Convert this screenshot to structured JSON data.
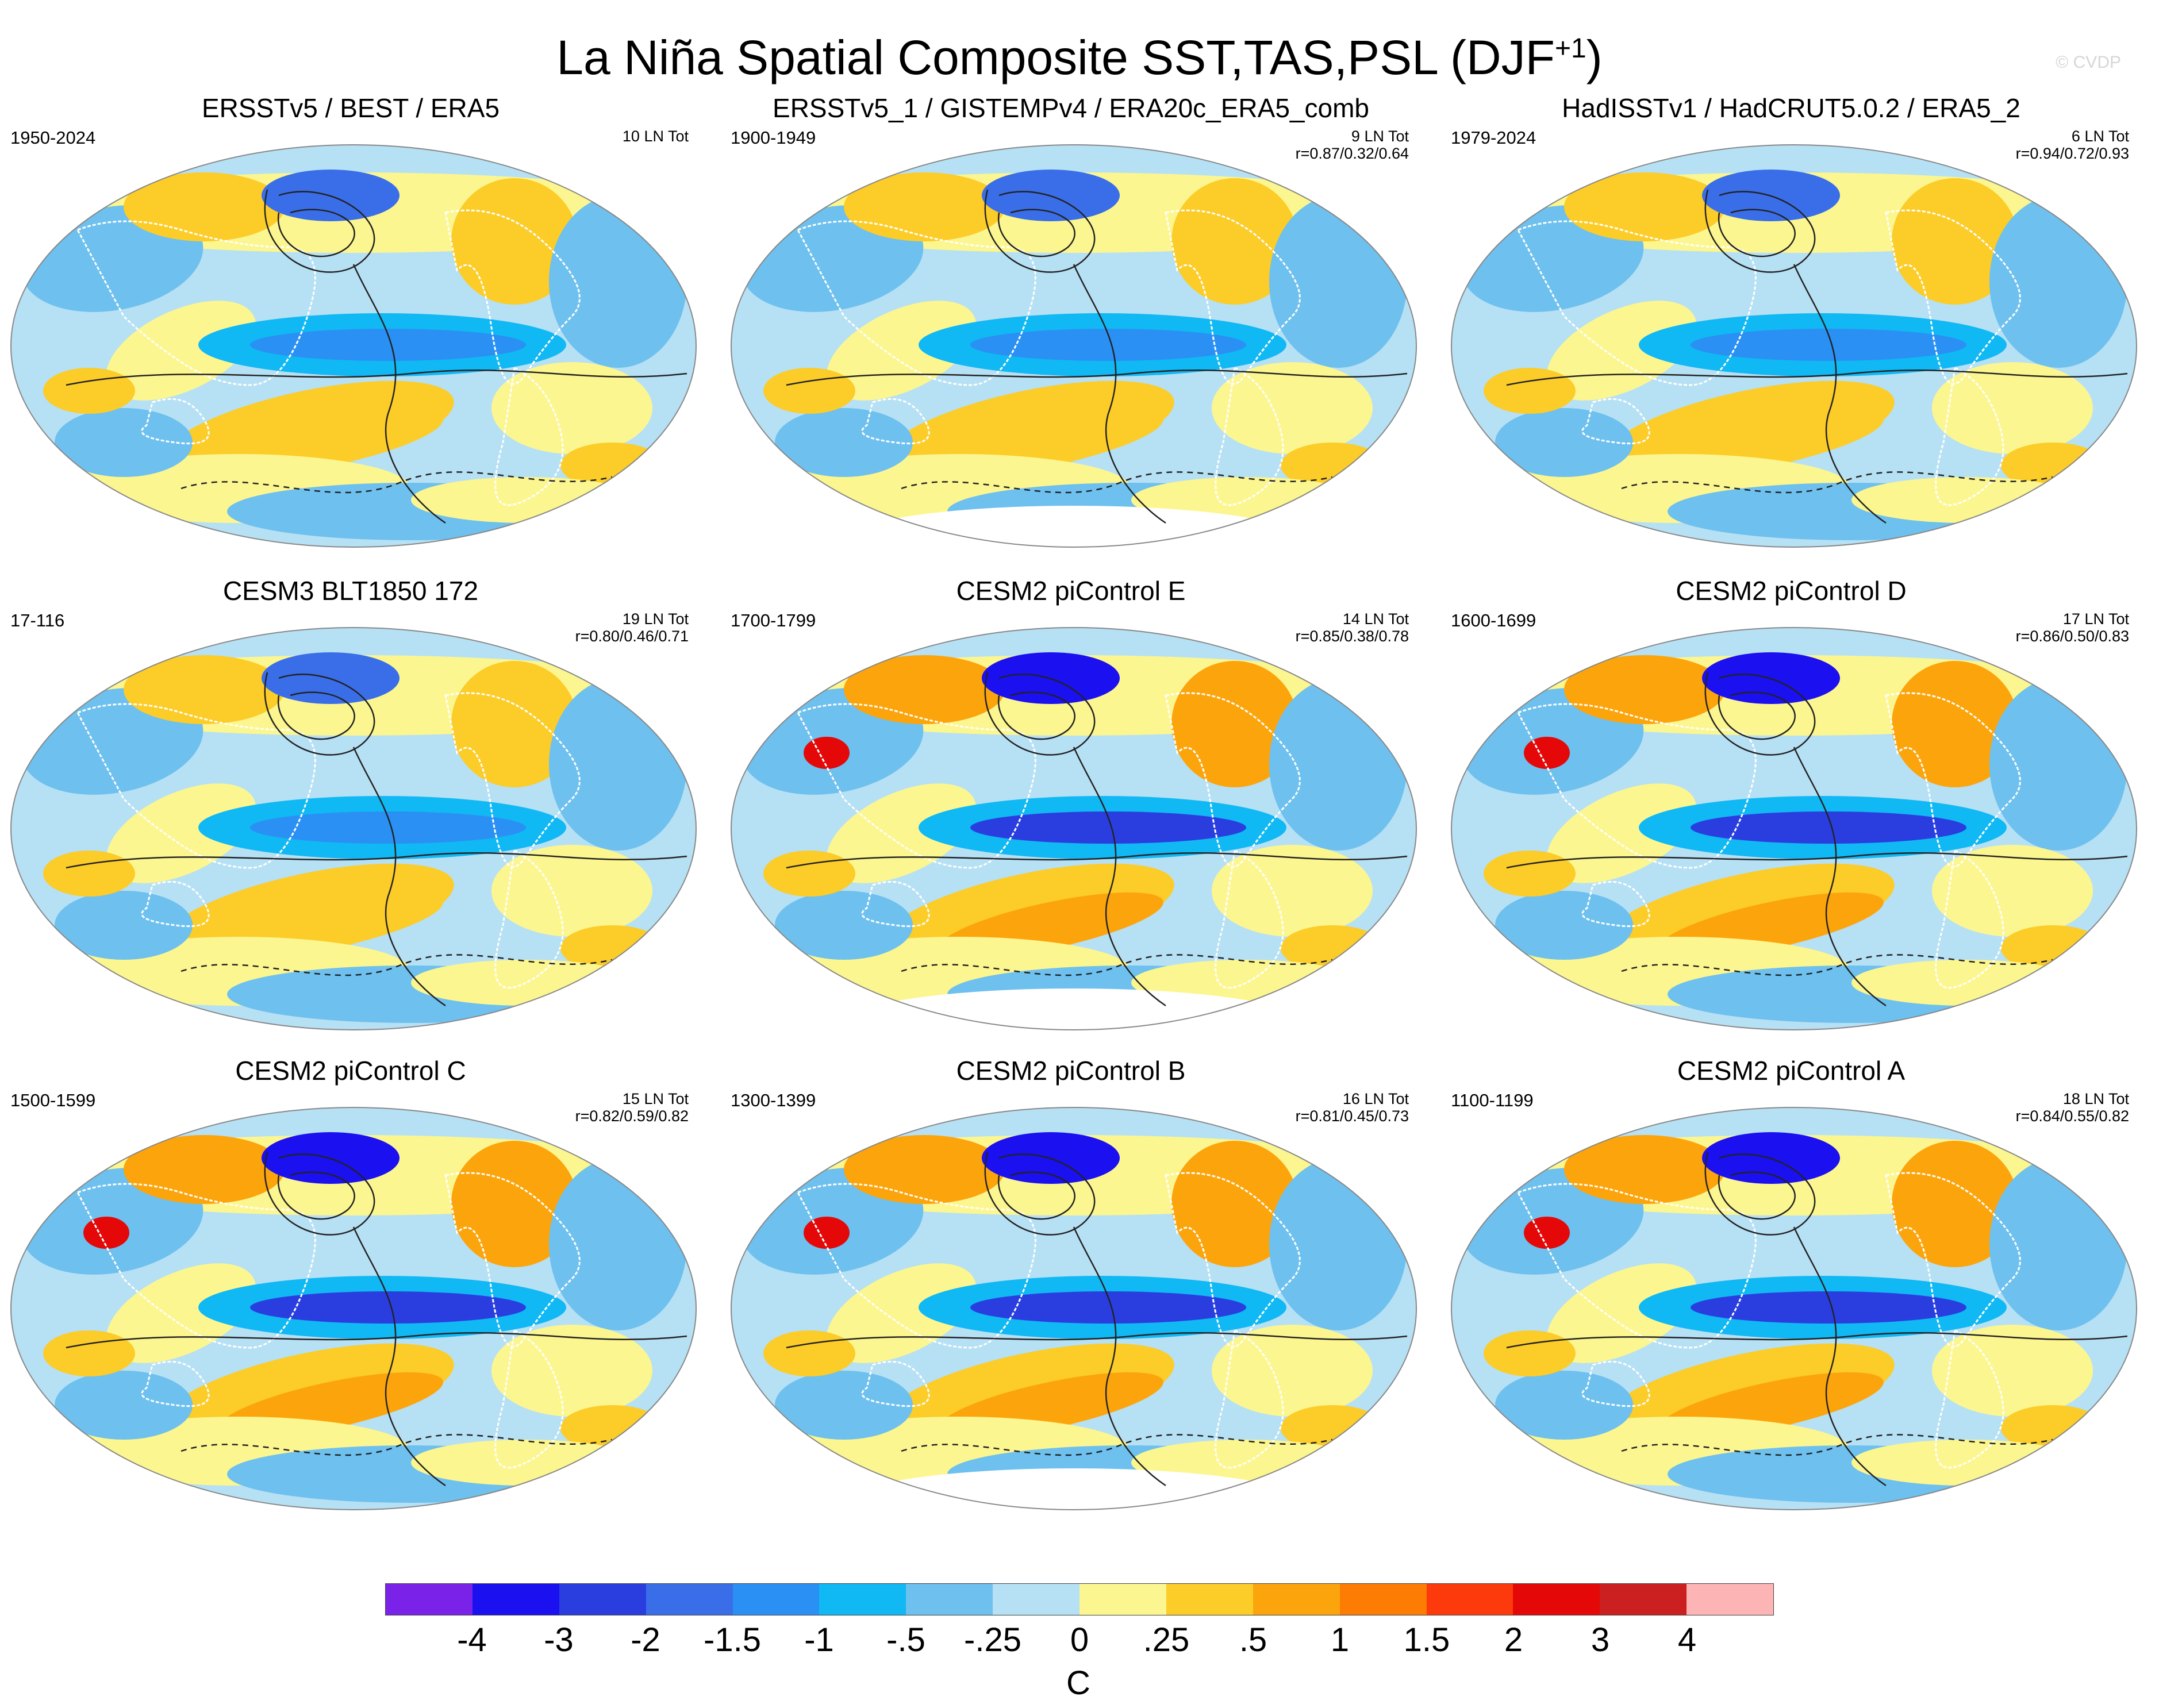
{
  "title": {
    "text": "La Niña Spatial Composite SST,TAS,PSL (DJF",
    "sup": "+1",
    "close": ")"
  },
  "watermark": "© CVDP",
  "panels": [
    {
      "title": "ERSSTv5 / BEST / ERA5",
      "years": "1950-2024",
      "events": "10 LN Tot",
      "corr": ""
    },
    {
      "title": "ERSSTv5_1 / GISTEMPv4 / ERA20c_ERA5_comb",
      "years": "1900-1949",
      "events": "9 LN Tot",
      "corr": "r=0.87/0.32/0.64"
    },
    {
      "title": "HadISSTv1 / HadCRUT5.0.2 / ERA5_2",
      "years": "1979-2024",
      "events": "6 LN Tot",
      "corr": "r=0.94/0.72/0.93"
    },
    {
      "title": "CESM3 BLT1850 172",
      "years": "17-116",
      "events": "19 LN Tot",
      "corr": "r=0.80/0.46/0.71"
    },
    {
      "title": "CESM2 piControl E",
      "years": "1700-1799",
      "events": "14 LN Tot",
      "corr": "r=0.85/0.38/0.78"
    },
    {
      "title": "CESM2 piControl D",
      "years": "1600-1699",
      "events": "17 LN Tot",
      "corr": "r=0.86/0.50/0.83"
    },
    {
      "title": "CESM2 piControl C",
      "years": "1500-1599",
      "events": "15 LN Tot",
      "corr": "r=0.82/0.59/0.82"
    },
    {
      "title": "CESM2 piControl B",
      "years": "1300-1399",
      "events": "16 LN Tot",
      "corr": "r=0.81/0.45/0.73"
    },
    {
      "title": "CESM2 piControl A",
      "years": "1100-1199",
      "events": "18 LN Tot",
      "corr": "r=0.84/0.55/0.82"
    }
  ],
  "colorbar": {
    "colors": [
      "#7b22e8",
      "#1a10f0",
      "#2a3ee0",
      "#3a6ee8",
      "#2a90f4",
      "#10b8f4",
      "#6ec0ee",
      "#b6e0f4",
      "#fcf690",
      "#fccc28",
      "#fca40c",
      "#fc7c04",
      "#fc3a0c",
      "#e40808",
      "#cc2020",
      "#fcb4b4"
    ],
    "ticks": [
      "-4",
      "-3",
      "-2",
      "-1.5",
      "-1",
      "-.5",
      "-.25",
      "0",
      ".25",
      ".5",
      "1",
      "1.5",
      "2",
      "3",
      "4"
    ],
    "units": "C"
  },
  "palette": {
    "land_outline": "#ffffff",
    "contour": "#222222",
    "edge": "#888888"
  }
}
